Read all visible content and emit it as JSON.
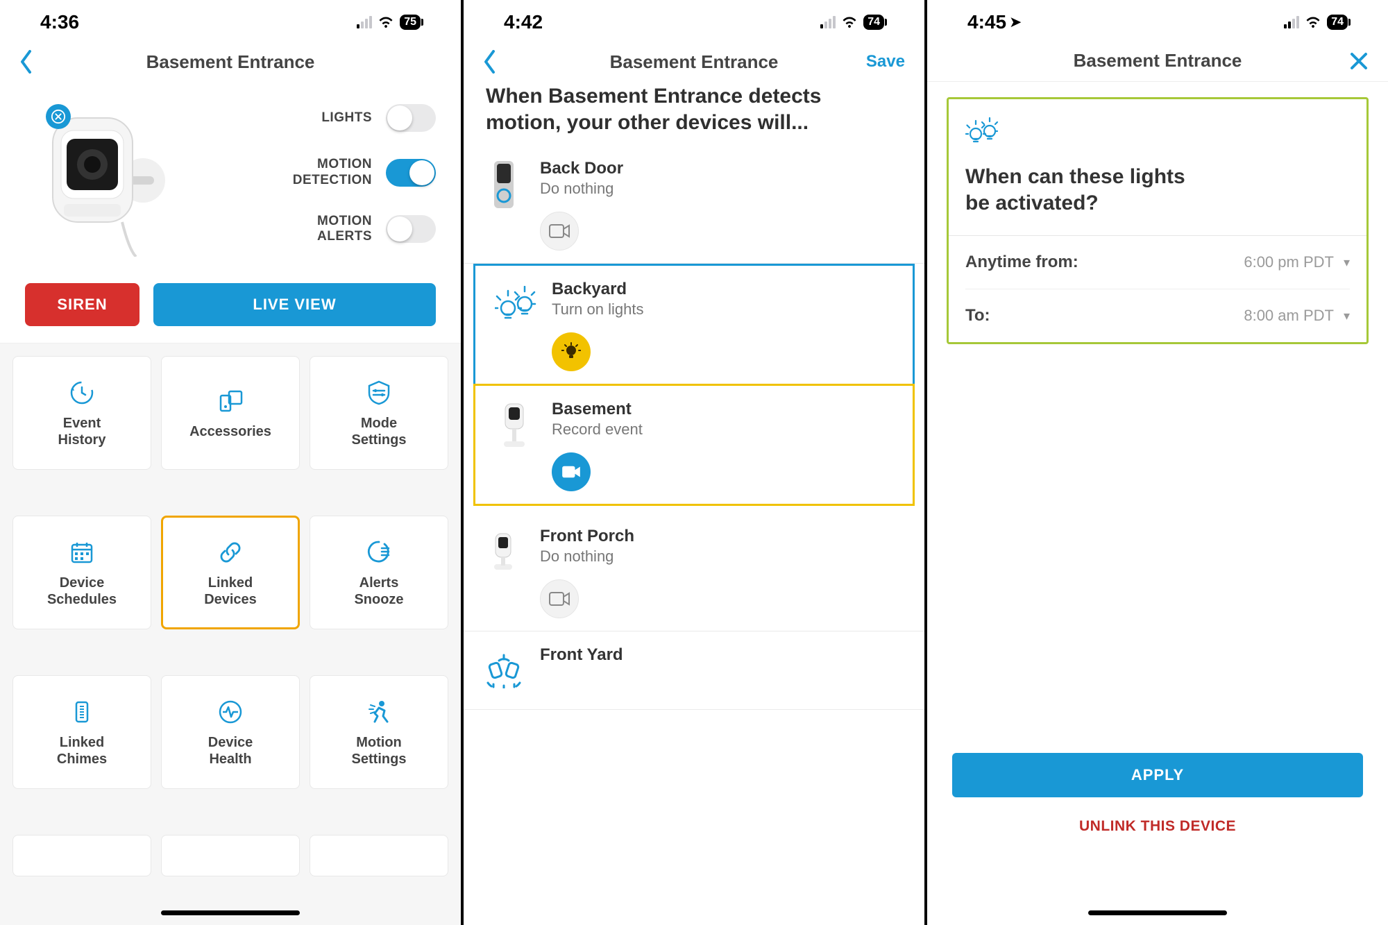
{
  "colors": {
    "accent": "#1998d5",
    "siren": "#d7302d",
    "hl_yellow": "#f0a500",
    "hl_lime": "#a6c838",
    "chip_yellow": "#f2c200"
  },
  "screen1": {
    "status": {
      "time": "4:36",
      "battery": "75",
      "signal_active": 1
    },
    "nav": {
      "title": "Basement Entrance"
    },
    "toggles": {
      "lights": {
        "label": "LIGHTS",
        "on": false
      },
      "motion_detection": {
        "label": "MOTION\nDETECTION",
        "on": true
      },
      "motion_alerts": {
        "label": "MOTION\nALERTS",
        "on": false
      }
    },
    "cta": {
      "siren": "SIREN",
      "live_view": "LIVE VIEW"
    },
    "tiles": [
      {
        "icon": "history",
        "label": "Event\nHistory",
        "highlighted": false
      },
      {
        "icon": "accessories",
        "label": "Accessories",
        "highlighted": false
      },
      {
        "icon": "mode",
        "label": "Mode\nSettings",
        "highlighted": false
      },
      {
        "icon": "schedule",
        "label": "Device\nSchedules",
        "highlighted": false
      },
      {
        "icon": "link",
        "label": "Linked\nDevices",
        "highlighted": true
      },
      {
        "icon": "snooze",
        "label": "Alerts\nSnooze",
        "highlighted": false
      },
      {
        "icon": "chime",
        "label": "Linked\nChimes",
        "highlighted": false
      },
      {
        "icon": "health",
        "label": "Device\nHealth",
        "highlighted": false
      },
      {
        "icon": "motion",
        "label": "Motion\nSettings",
        "highlighted": false
      }
    ]
  },
  "screen2": {
    "status": {
      "time": "4:42",
      "battery": "74",
      "signal_active": 1
    },
    "nav": {
      "title": "Basement Entrance",
      "action": "Save"
    },
    "heading": "When Basement Entrance detects motion, your other devices will...",
    "devices": [
      {
        "name": "Back Door",
        "subtitle": "Do nothing",
        "thumb": "doorbell",
        "chip": "camera",
        "box": ""
      },
      {
        "name": "Backyard",
        "subtitle": "Turn on lights",
        "thumb": "lights",
        "chip": "light-on",
        "box": "blue"
      },
      {
        "name": "Basement",
        "subtitle": "Record event",
        "thumb": "cam-stand",
        "chip": "record-on",
        "box": "yellow"
      },
      {
        "name": "Front Porch",
        "subtitle": "Do nothing",
        "thumb": "cam-small",
        "chip": "camera",
        "box": ""
      },
      {
        "name": "Front Yard",
        "subtitle": "",
        "thumb": "floodlight",
        "chip": "",
        "box": ""
      }
    ]
  },
  "screen3": {
    "status": {
      "time": "4:45",
      "battery": "74",
      "signal_active": 2,
      "location": true
    },
    "nav": {
      "title": "Basement Entrance"
    },
    "question": "When can these lights be activated?",
    "rows": {
      "from": {
        "label": "Anytime from:",
        "value": "6:00 pm PDT"
      },
      "to": {
        "label": "To:",
        "value": "8:00 am PDT"
      }
    },
    "apply_label": "APPLY",
    "unlink_label": "UNLINK THIS DEVICE"
  }
}
